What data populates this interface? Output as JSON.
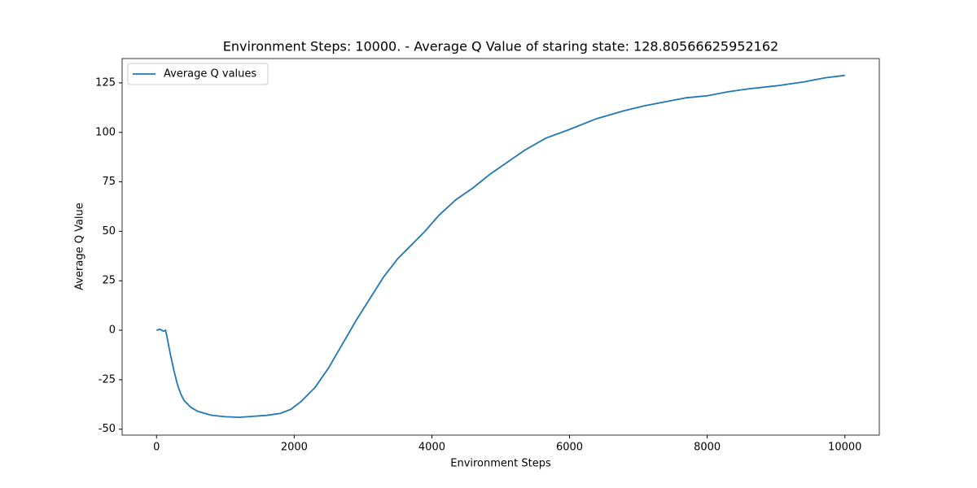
{
  "chart_data": {
    "type": "line",
    "title": "Environment Steps: 10000. - Average Q Value of staring state: 128.80566625952162",
    "x_label": "Environment Steps",
    "y_label": "Average Q Value",
    "x": [
      0,
      50,
      100,
      130,
      150,
      200,
      250,
      300,
      350,
      400,
      500,
      600,
      800,
      1000,
      1200,
      1400,
      1600,
      1800,
      1950,
      2100,
      2300,
      2500,
      2700,
      2900,
      3100,
      3300,
      3500,
      3700,
      3900,
      4100,
      4350,
      4600,
      4850,
      5100,
      5350,
      5650,
      6000,
      6400,
      6800,
      7100,
      7400,
      7700,
      8000,
      8300,
      8600,
      9000,
      9400,
      9700,
      10000
    ],
    "series": [
      {
        "name": "Average Q values",
        "color": "#1f77b4",
        "values": [
          0,
          0.5,
          -0.5,
          0,
          -3,
          -12,
          -20,
          -27,
          -32,
          -35.5,
          -39,
          -41,
          -43,
          -43.7,
          -44,
          -43.5,
          -43,
          -42,
          -40,
          -36,
          -29,
          -19,
          -7,
          5,
          16,
          27,
          36,
          43,
          50,
          58,
          66,
          72,
          79,
          85,
          91,
          97,
          101.5,
          107,
          111,
          113.5,
          115.5,
          117.5,
          118.5,
          120.5,
          122,
          123.5,
          125.5,
          127.5,
          128.8
        ]
      }
    ],
    "xlim": [
      -500,
      10500
    ],
    "ylim": [
      -53,
      137.3
    ],
    "xticks": [
      0,
      2000,
      4000,
      6000,
      8000,
      10000
    ],
    "yticks": [
      -50,
      -25,
      0,
      25,
      50,
      75,
      100,
      125
    ],
    "legend": "upper left"
  }
}
